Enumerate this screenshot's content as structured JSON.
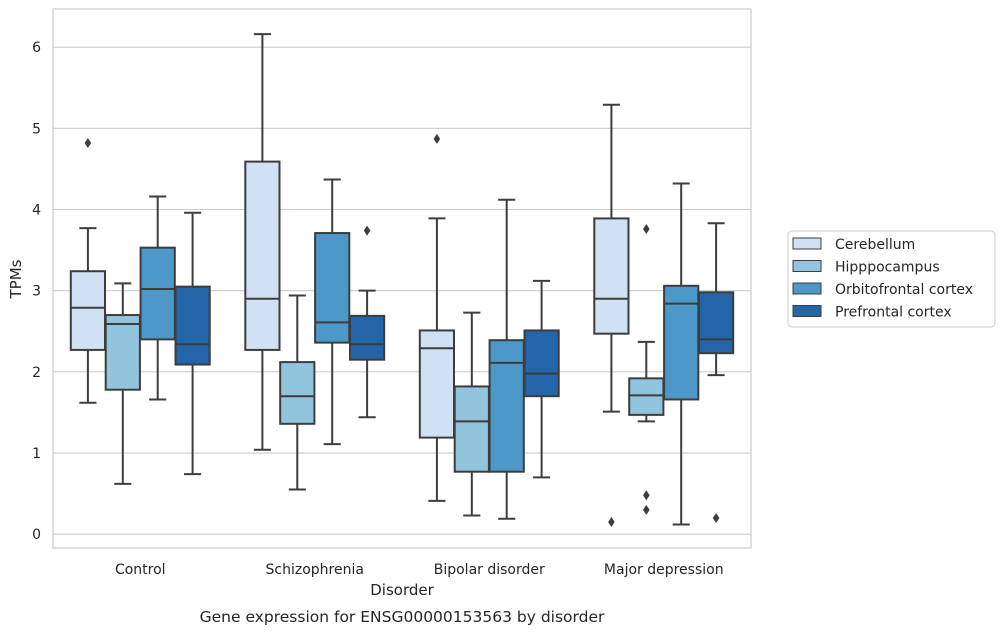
{
  "chart_data": {
    "type": "boxplot",
    "caption": "Gene expression for ENSG00000153563 by disorder",
    "xlabel": "Disorder",
    "ylabel": "TPMs",
    "ylim": [
      -0.17,
      6.47
    ],
    "yticks": [
      0,
      1,
      2,
      3,
      4,
      5,
      6
    ],
    "categories": [
      "Control",
      "Schizophrenia",
      "Bipolar disorder",
      "Major depression"
    ],
    "grid": "horizontal",
    "legend_position": "right",
    "series": [
      {
        "name": "Cerebellum",
        "color": "#cfe1f2",
        "boxes": [
          {
            "whislo": 1.62,
            "q1": 2.27,
            "med": 2.79,
            "q3": 3.24,
            "whishi": 3.77,
            "fliers": [
              4.82
            ]
          },
          {
            "whislo": 1.04,
            "q1": 2.27,
            "med": 2.9,
            "q3": 4.59,
            "whishi": 6.16,
            "fliers": []
          },
          {
            "whislo": 0.41,
            "q1": 1.19,
            "med": 2.29,
            "q3": 2.51,
            "whishi": 3.89,
            "fliers": [
              4.87
            ]
          },
          {
            "whislo": 1.51,
            "q1": 2.47,
            "med": 2.9,
            "q3": 3.89,
            "whishi": 5.29,
            "fliers": [
              0.15
            ]
          }
        ]
      },
      {
        "name": "Hipppocampus",
        "color": "#93c4de",
        "boxes": [
          {
            "whislo": 0.62,
            "q1": 1.78,
            "med": 2.59,
            "q3": 2.7,
            "whishi": 3.09,
            "fliers": []
          },
          {
            "whislo": 0.55,
            "q1": 1.36,
            "med": 1.7,
            "q3": 2.12,
            "whishi": 2.94,
            "fliers": []
          },
          {
            "whislo": 0.23,
            "q1": 0.77,
            "med": 1.39,
            "q3": 1.82,
            "whishi": 2.73,
            "fliers": []
          },
          {
            "whislo": 1.39,
            "q1": 1.47,
            "med": 1.71,
            "q3": 1.92,
            "whishi": 2.37,
            "fliers": [
              0.3,
              0.48,
              3.76
            ]
          }
        ]
      },
      {
        "name": "Orbitofrontal cortex",
        "color": "#4b98c9",
        "boxes": [
          {
            "whislo": 1.66,
            "q1": 2.4,
            "med": 3.02,
            "q3": 3.53,
            "whishi": 4.16,
            "fliers": []
          },
          {
            "whislo": 1.11,
            "q1": 2.36,
            "med": 2.61,
            "q3": 3.71,
            "whishi": 4.37,
            "fliers": []
          },
          {
            "whislo": 0.19,
            "q1": 0.77,
            "med": 2.11,
            "q3": 2.39,
            "whishi": 4.12,
            "fliers": []
          },
          {
            "whislo": 0.12,
            "q1": 1.66,
            "med": 2.84,
            "q3": 3.06,
            "whishi": 4.32,
            "fliers": []
          }
        ]
      },
      {
        "name": "Prefrontal cortex",
        "color": "#2464a8",
        "boxes": [
          {
            "whislo": 0.74,
            "q1": 2.09,
            "med": 2.34,
            "q3": 3.05,
            "whishi": 3.96,
            "fliers": []
          },
          {
            "whislo": 1.44,
            "q1": 2.15,
            "med": 2.34,
            "q3": 2.69,
            "whishi": 3.0,
            "fliers": [
              3.74
            ]
          },
          {
            "whislo": 0.7,
            "q1": 1.7,
            "med": 1.98,
            "q3": 2.51,
            "whishi": 3.12,
            "fliers": []
          },
          {
            "whislo": 1.96,
            "q1": 2.23,
            "med": 2.4,
            "q3": 2.98,
            "whishi": 3.83,
            "fliers": [
              0.2
            ]
          }
        ]
      }
    ]
  }
}
